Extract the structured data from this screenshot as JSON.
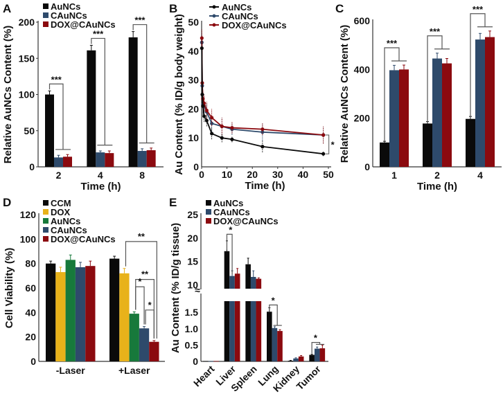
{
  "colors": {
    "black": "#0a0a0a",
    "blue": "#2e4a6b",
    "red": "#8b0a0f",
    "yellow": "#e8b21a",
    "green": "#17793b",
    "bracket": "#555555"
  },
  "chart_data": [
    {
      "id": "A",
      "panel_label": "A",
      "type": "bar",
      "title": "",
      "xlabel": "Time (h)",
      "ylabel": "Relative AuNCs Content (%)",
      "categories": [
        "2",
        "4",
        "8"
      ],
      "ylim": [
        0,
        200
      ],
      "yticks": [
        0,
        50,
        100,
        150,
        200
      ],
      "legend_position": "top-left",
      "series": [
        {
          "name": "AuNCs",
          "color_key": "black",
          "values": [
            100,
            161,
            179
          ],
          "errors": [
            5,
            7,
            8
          ]
        },
        {
          "name": "CAuNCs",
          "color_key": "blue",
          "values": [
            13,
            20,
            22
          ],
          "errors": [
            3,
            2,
            3
          ]
        },
        {
          "name": "DOX@CAuNCs",
          "color_key": "red",
          "values": [
            14,
            19,
            23
          ],
          "errors": [
            3,
            3,
            3
          ]
        }
      ],
      "annotations": [
        {
          "category": 0,
          "text": "***"
        },
        {
          "category": 1,
          "text": "***"
        },
        {
          "category": 2,
          "text": "***"
        }
      ]
    },
    {
      "id": "B",
      "panel_label": "B",
      "type": "line",
      "title": "",
      "xlabel": "Time (h)",
      "ylabel": "Au Content (% ID/g body weight)",
      "xlim": [
        0,
        50
      ],
      "ylim": [
        0,
        50
      ],
      "xticks": [
        0,
        10,
        20,
        30,
        40,
        50
      ],
      "yticks": [
        0,
        10,
        20,
        30,
        40,
        50
      ],
      "legend_position": "top",
      "x": [
        0.083,
        0.25,
        0.5,
        1,
        2,
        4,
        8,
        12,
        24,
        48
      ],
      "series": [
        {
          "name": "AuNCs",
          "color_key": "black",
          "values": [
            41,
            25,
            21,
            17.5,
            16,
            11.5,
            10,
            9.5,
            7,
            4.5
          ],
          "errors": [
            3,
            3,
            3,
            2,
            2,
            2,
            1.5,
            1,
            2,
            0.8
          ]
        },
        {
          "name": "CAuNCs",
          "color_key": "blue",
          "values": [
            43,
            28,
            21.5,
            21,
            19,
            15,
            14,
            13,
            12,
            11
          ],
          "errors": [
            3,
            3,
            3,
            3,
            3,
            3,
            3,
            2,
            3,
            3
          ]
        },
        {
          "name": "DOX@CAuNCs",
          "color_key": "red",
          "values": [
            44.5,
            29,
            23.5,
            22,
            19.5,
            17,
            14,
            13.5,
            13,
            11
          ],
          "errors": [
            3,
            3,
            3,
            3,
            3,
            3,
            3,
            2,
            2,
            3
          ]
        }
      ],
      "annotations": [
        {
          "text": "*",
          "at_x": 48
        }
      ]
    },
    {
      "id": "C",
      "panel_label": "C",
      "type": "bar",
      "title": "",
      "xlabel": "Time (h)",
      "ylabel": "Relative AuNCs Content (%)",
      "categories": [
        "1",
        "2",
        "4"
      ],
      "ylim": [
        0,
        600
      ],
      "yticks": [
        0,
        200,
        400,
        600
      ],
      "series": [
        {
          "name": "AuNCs",
          "color_key": "black",
          "values": [
            100,
            178,
            197
          ],
          "errors": [
            5,
            8,
            10
          ]
        },
        {
          "name": "CAuNCs",
          "color_key": "blue",
          "values": [
            397,
            445,
            523
          ],
          "errors": [
            20,
            22,
            25
          ]
        },
        {
          "name": "DOX@CAuNCs",
          "color_key": "red",
          "values": [
            400,
            425,
            533
          ],
          "errors": [
            18,
            20,
            25
          ]
        }
      ],
      "annotations": [
        {
          "category": 0,
          "text": "***"
        },
        {
          "category": 1,
          "text": "***"
        },
        {
          "category": 2,
          "text": "***"
        }
      ]
    },
    {
      "id": "D",
      "panel_label": "D",
      "type": "bar",
      "title": "",
      "xlabel": "",
      "ylabel": "Cell Viability (%)",
      "categories": [
        "-Laser",
        "+Laser"
      ],
      "ylim": [
        0,
        120
      ],
      "yticks": [
        0,
        20,
        40,
        60,
        80,
        100,
        120
      ],
      "legend_position": "top-left",
      "series": [
        {
          "name": "CCM",
          "color_key": "black",
          "values": [
            80,
            84
          ],
          "errors": [
            2,
            2
          ]
        },
        {
          "name": "DOX",
          "color_key": "yellow",
          "values": [
            73,
            72
          ],
          "errors": [
            4,
            4
          ]
        },
        {
          "name": "AuNCs",
          "color_key": "green",
          "values": [
            83,
            39
          ],
          "errors": [
            4,
            1.5
          ]
        },
        {
          "name": "CAuNCs",
          "color_key": "blue",
          "values": [
            77,
            27
          ],
          "errors": [
            4,
            1.5
          ]
        },
        {
          "name": "DOX@CAuNCs",
          "color_key": "red",
          "values": [
            78,
            16
          ],
          "errors": [
            4,
            1
          ]
        }
      ],
      "annotations": [
        {
          "from": "DOX",
          "to": "DOX@CAuNCs",
          "text": "**",
          "level": 98
        },
        {
          "from": "AuNCs",
          "to": "DOX@CAuNCs",
          "text": "**",
          "level": 67
        },
        {
          "from": "AuNCs",
          "to": "CAuNCs",
          "text": "*",
          "level": 61
        },
        {
          "from": "CAuNCs",
          "to": "DOX@CAuNCs",
          "text": "*",
          "level": 42
        }
      ]
    },
    {
      "id": "E",
      "panel_label": "E",
      "type": "bar",
      "title": "",
      "xlabel": "",
      "ylabel": "Au Content (% ID/g tissue)",
      "categories": [
        "Heart",
        "Liver",
        "Spleen",
        "Lung",
        "Kidney",
        "Tumor"
      ],
      "axis_break": {
        "lower": [
          0,
          1.8
        ],
        "upper": [
          8,
          25
        ]
      },
      "yticks_lower": [
        "0",
        "0.5",
        "1.0",
        "1.5"
      ],
      "yticks_upper": [
        "10",
        "15",
        "20",
        "25"
      ],
      "legend_position": "top-left",
      "series": [
        {
          "name": "AuNCs",
          "color_key": "black",
          "values": [
            0.01,
            17.2,
            14.4,
            1.52,
            0.02,
            0.2
          ],
          "errors": [
            0,
            2.2,
            1.3,
            0.12,
            0.01,
            0.02
          ]
        },
        {
          "name": "CAuNCs",
          "color_key": "blue",
          "values": [
            0.01,
            11.9,
            11.7,
            1.02,
            0.09,
            0.39
          ],
          "errors": [
            0,
            1.1,
            1.3,
            0.04,
            0.02,
            0.05
          ]
        },
        {
          "name": "DOX@CAuNCs",
          "color_key": "red",
          "values": [
            0.01,
            12.4,
            11.3,
            0.93,
            0.15,
            0.4
          ],
          "errors": [
            0,
            1.1,
            0.2,
            0.04,
            0.03,
            0.1
          ]
        }
      ],
      "annotations": [
        {
          "category": 1,
          "text": "*"
        },
        {
          "category": 3,
          "text": "*"
        },
        {
          "category": 5,
          "text": "*"
        }
      ]
    }
  ]
}
